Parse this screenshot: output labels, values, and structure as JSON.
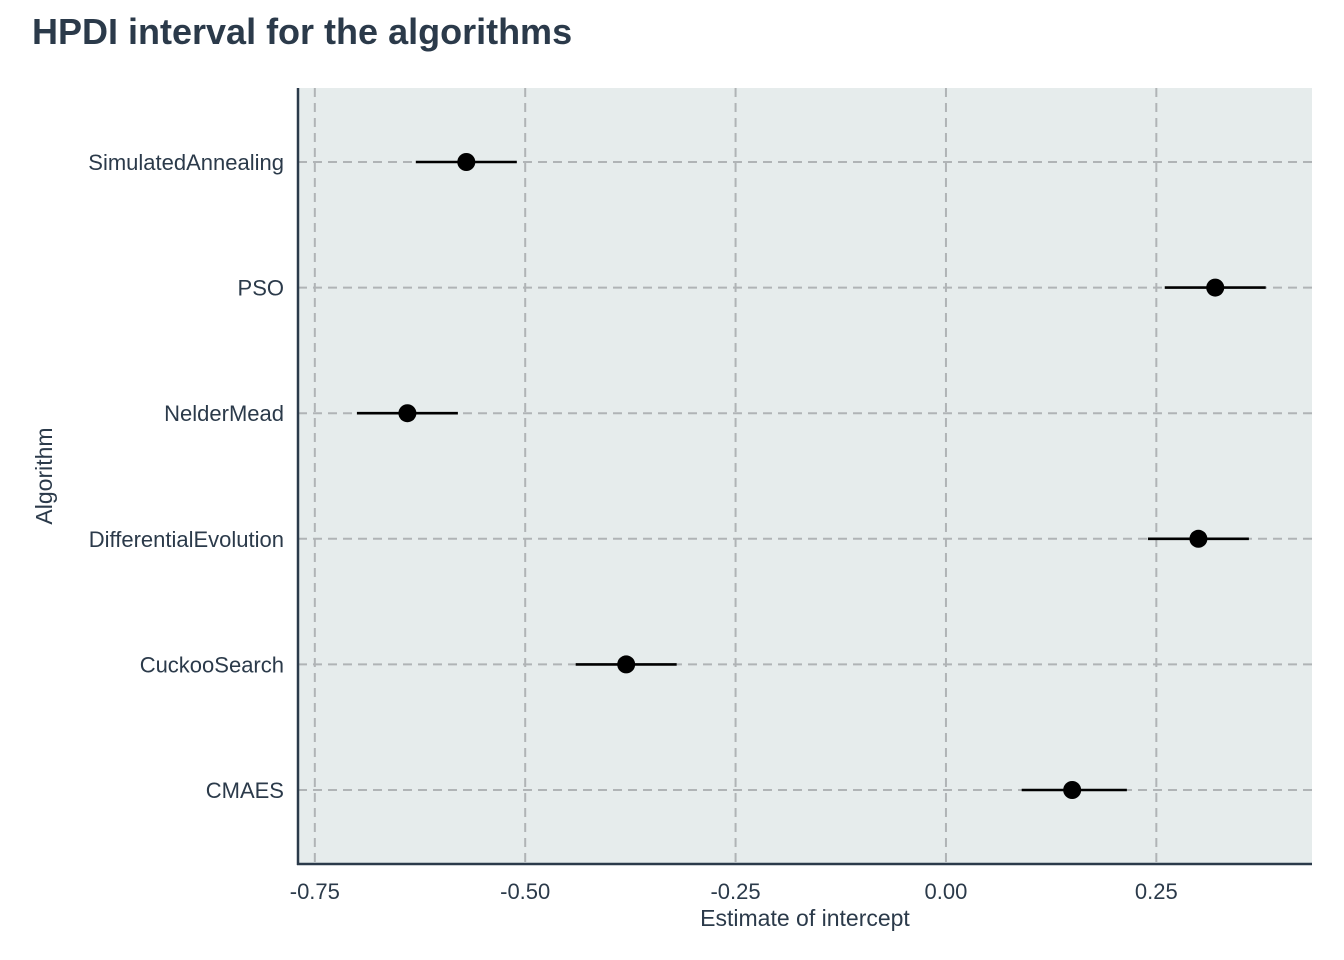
{
  "chart_data": {
    "type": "scatter",
    "title": "HPDI interval for the algorithms",
    "xlabel": "Estimate of intercept",
    "ylabel": "Algorithm",
    "xlim": [
      -0.77,
      0.435
    ],
    "x_ticks": [
      "-0.75",
      "-0.50",
      "-0.25",
      "0.00",
      "0.25"
    ],
    "x_tick_values": [
      -0.75,
      -0.5,
      -0.25,
      0.0,
      0.25
    ],
    "categories": [
      "SimulatedAnnealing",
      "PSO",
      "NelderMead",
      "DifferentialEvolution",
      "CuckooSearch",
      "CMAES"
    ],
    "estimates": [
      -0.57,
      0.32,
      -0.64,
      0.3,
      -0.38,
      0.15
    ],
    "lower": [
      -0.63,
      0.26,
      -0.7,
      0.24,
      -0.44,
      0.09
    ],
    "upper": [
      -0.51,
      0.38,
      -0.58,
      0.36,
      -0.32,
      0.215
    ],
    "grid": true,
    "grid_style": "dashed",
    "panel_color": "#e6ecec",
    "point_color": "#000000",
    "text_color": "#2b3a4a"
  }
}
